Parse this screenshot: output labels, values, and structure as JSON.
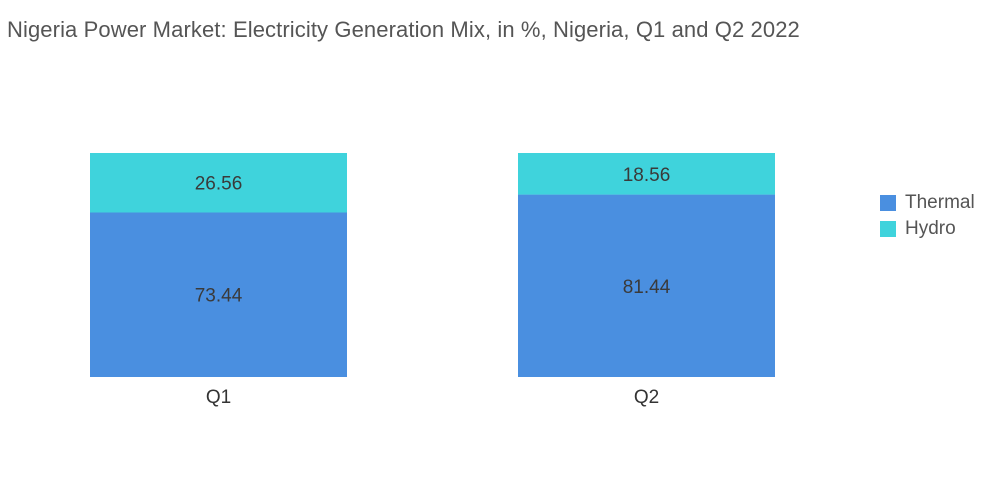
{
  "colors": {
    "thermal": "#4a8fe0",
    "hydro": "#3fd3dc"
  },
  "chart_data": {
    "type": "bar",
    "stacked": true,
    "title": "Nigeria Power Market: Electricity Generation Mix, in %, Nigeria, Q1 and Q2 2022",
    "categories": [
      "Q1",
      "Q2"
    ],
    "series": [
      {
        "name": "Thermal",
        "values": [
          73.44,
          81.44
        ],
        "labels": [
          "73.44",
          "81.44"
        ]
      },
      {
        "name": "Hydro",
        "values": [
          26.56,
          18.56
        ],
        "labels": [
          "26.56",
          "18.56"
        ]
      }
    ],
    "xlabel": "",
    "ylabel": "",
    "ylim": [
      0,
      100
    ],
    "grid": false,
    "legend": "right"
  }
}
